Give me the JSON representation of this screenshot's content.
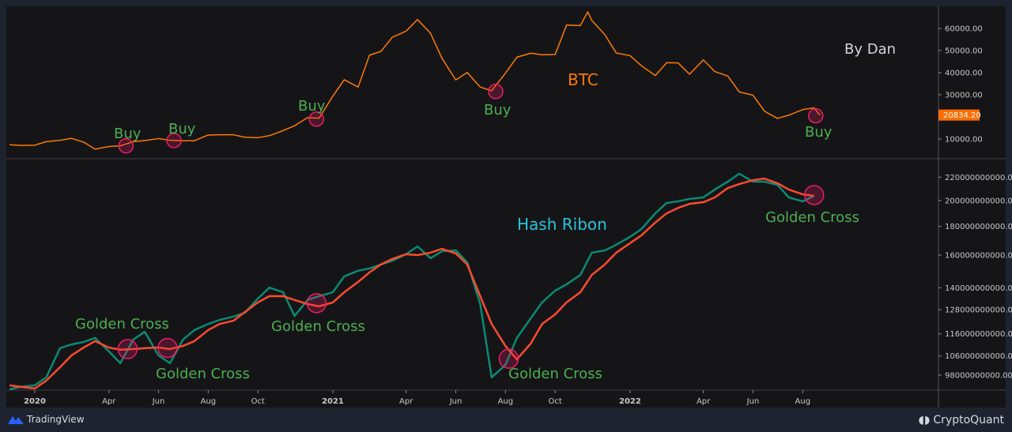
{
  "chart_data": [
    {
      "type": "line",
      "title": "BTC",
      "credit": "By Dan",
      "y_scale": "linear",
      "ylim": [
        0,
        68000
      ],
      "y_ticks": [
        "10000.00",
        "30000.00",
        "40000.00",
        "50000.00",
        "60000.00"
      ],
      "last_value_label": "20834.20",
      "color": "#ff7a00",
      "x": [
        "2019-12-01",
        "2019-12-15",
        "2020-01-01",
        "2020-01-15",
        "2020-02-01",
        "2020-02-15",
        "2020-03-01",
        "2020-03-15",
        "2020-04-01",
        "2020-04-15",
        "2020-05-01",
        "2020-05-15",
        "2020-06-01",
        "2020-06-15",
        "2020-07-01",
        "2020-07-15",
        "2020-08-01",
        "2020-08-15",
        "2020-09-01",
        "2020-09-15",
        "2020-10-01",
        "2020-10-15",
        "2020-11-01",
        "2020-11-15",
        "2020-12-01",
        "2020-12-15",
        "2021-01-01",
        "2021-01-15",
        "2021-02-01",
        "2021-02-15",
        "2021-03-01",
        "2021-03-15",
        "2021-04-01",
        "2021-04-15",
        "2021-05-01",
        "2021-05-15",
        "2021-06-01",
        "2021-06-15",
        "2021-07-01",
        "2021-07-15",
        "2021-08-01",
        "2021-08-15",
        "2021-09-01",
        "2021-09-15",
        "2021-10-01",
        "2021-10-15",
        "2021-11-01",
        "2021-11-10",
        "2021-11-15",
        "2021-12-01",
        "2021-12-15",
        "2022-01-01",
        "2022-01-15",
        "2022-02-01",
        "2022-02-15",
        "2022-03-01",
        "2022-03-15",
        "2022-04-01",
        "2022-04-15",
        "2022-05-01",
        "2022-05-15",
        "2022-06-01",
        "2022-06-15",
        "2022-07-01",
        "2022-07-15",
        "2022-08-01",
        "2022-08-15",
        "2022-08-22"
      ],
      "values": [
        7400,
        7100,
        7200,
        8800,
        9400,
        10300,
        8600,
        5400,
        6600,
        6900,
        8800,
        9300,
        10200,
        9400,
        9200,
        9200,
        11800,
        11900,
        11900,
        10800,
        10600,
        11500,
        13800,
        16000,
        19700,
        19400,
        29400,
        36800,
        33500,
        47900,
        49600,
        56000,
        58800,
        64000,
        57800,
        46500,
        36700,
        40100,
        33500,
        31800,
        39800,
        47000,
        48800,
        48100,
        48200,
        61500,
        61300,
        67500,
        63600,
        57200,
        48900,
        47700,
        43100,
        38700,
        44500,
        44400,
        39300,
        45800,
        40500,
        38500,
        31300,
        29800,
        22600,
        19300,
        20800,
        23300,
        24100,
        20834.2
      ],
      "annotations": [
        {
          "label": "Buy",
          "date": "2020-04-22",
          "value": 6900
        },
        {
          "label": "Buy",
          "date": "2020-06-20",
          "value": 9300
        },
        {
          "label": "Buy",
          "date": "2020-12-12",
          "value": 19000
        },
        {
          "label": "Buy",
          "date": "2021-07-20",
          "value": 31500
        },
        {
          "label": "Buy",
          "date": "2022-08-17",
          "value": 20500
        }
      ]
    },
    {
      "type": "line",
      "title": "Hash Ribon",
      "y_scale": "log",
      "y_ticks": [
        "98000000000.00",
        "106000000000.00",
        "116000000000.00",
        "128000000000.00",
        "140000000000.00",
        "160000000000.00",
        "180000000000.00",
        "200000000000.00",
        "220000000000.00"
      ],
      "x": [
        "2019-12-01",
        "2019-12-15",
        "2020-01-01",
        "2020-01-15",
        "2020-02-01",
        "2020-02-15",
        "2020-03-01",
        "2020-03-15",
        "2020-04-01",
        "2020-04-15",
        "2020-05-01",
        "2020-05-15",
        "2020-06-01",
        "2020-06-15",
        "2020-07-01",
        "2020-07-15",
        "2020-08-01",
        "2020-08-15",
        "2020-09-01",
        "2020-09-15",
        "2020-10-01",
        "2020-10-15",
        "2020-11-01",
        "2020-11-15",
        "2020-12-01",
        "2020-12-15",
        "2021-01-01",
        "2021-01-15",
        "2021-02-01",
        "2021-02-15",
        "2021-03-01",
        "2021-03-15",
        "2021-04-01",
        "2021-04-15",
        "2021-05-01",
        "2021-05-15",
        "2021-06-01",
        "2021-06-15",
        "2021-07-01",
        "2021-07-15",
        "2021-08-01",
        "2021-08-15",
        "2021-09-01",
        "2021-09-15",
        "2021-10-01",
        "2021-10-15",
        "2021-11-01",
        "2021-11-15",
        "2021-12-01",
        "2021-12-15",
        "2022-01-01",
        "2022-01-15",
        "2022-02-01",
        "2022-02-15",
        "2022-03-01",
        "2022-03-15",
        "2022-04-01",
        "2022-04-15",
        "2022-05-01",
        "2022-05-15",
        "2022-06-01",
        "2022-06-15",
        "2022-07-01",
        "2022-07-15",
        "2022-08-01",
        "2022-08-15"
      ],
      "series": [
        {
          "color": "#0b8a72",
          "values": [
            92500000000,
            93400000000,
            94000000000,
            97100000000,
            109400000000,
            111100000000,
            112200000000,
            114100000000,
            108000000000,
            102900000000,
            113300000000,
            117000000000,
            106200000000,
            102900000000,
            113300000000,
            117800000000,
            120800000000,
            122800000000,
            124500000000,
            126400000000,
            134000000000,
            140100000000,
            137500000000,
            124800000000,
            133200000000,
            135300000000,
            137500000000,
            146700000000,
            150100000000,
            151500000000,
            154000000000,
            156400000000,
            160600000000,
            165800000000,
            158000000000,
            162600000000,
            163100000000,
            155400000000,
            131000000000,
            97100000000,
            102200000000,
            114100000000,
            123600000000,
            131900000000,
            138400000000,
            142000000000,
            147600000000,
            161600000000,
            163100000000,
            166900000000,
            172400000000,
            178000000000,
            189800000000,
            198000000000,
            199300000000,
            201300000000,
            202500000000,
            209100000000,
            216000000000,
            223100000000,
            216000000000,
            216000000000,
            213200000000,
            202500000000,
            199300000000,
            203800000000
          ]
        },
        {
          "color": "#ff4a2e",
          "values": [
            94000000000,
            93400000000,
            92800000000,
            95800000000,
            101200000000,
            106200000000,
            109700000000,
            112600000000,
            109700000000,
            108700000000,
            109000000000,
            109400000000,
            109700000000,
            109000000000,
            110400000000,
            112600000000,
            117800000000,
            120800000000,
            122400000000,
            126800000000,
            131900000000,
            135300000000,
            135300000000,
            133200000000,
            131000000000,
            129800000000,
            131900000000,
            137500000000,
            143400000000,
            149100000000,
            154000000000,
            157500000000,
            160600000000,
            160000000000,
            161600000000,
            164200000000,
            161100000000,
            154000000000,
            135300000000,
            120800000000,
            110400000000,
            104500000000,
            111500000000,
            120800000000,
            125600000000,
            131900000000,
            137500000000,
            147600000000,
            154000000000,
            161600000000,
            168000000000,
            173500000000,
            182800000000,
            189800000000,
            194000000000,
            197300000000,
            198600000000,
            202500000000,
            210400000000,
            213900000000,
            217300000000,
            218700000000,
            214600000000,
            209100000000,
            205100000000,
            203800000000
          ]
        }
      ],
      "annotations": [
        {
          "label": "Golden Cross",
          "date": "2020-04-24",
          "value": 109000000000
        },
        {
          "label": "Golden Cross",
          "date": "2020-06-12",
          "value": 109500000000
        },
        {
          "label": "Golden Cross",
          "date": "2020-12-12",
          "value": 131500000000
        },
        {
          "label": "Golden Cross",
          "date": "2021-08-05",
          "value": 104800000000
        },
        {
          "label": "Golden Cross",
          "date": "2022-08-15",
          "value": 204500000000
        }
      ]
    }
  ],
  "x_axis": {
    "ticks": [
      {
        "label": "2020",
        "date": "2020-01-01",
        "year": true
      },
      {
        "label": "Apr",
        "date": "2020-04-01"
      },
      {
        "label": "Jun",
        "date": "2020-06-01"
      },
      {
        "label": "Aug",
        "date": "2020-08-01"
      },
      {
        "label": "Oct",
        "date": "2020-10-01"
      },
      {
        "label": "2021",
        "date": "2021-01-01",
        "year": true
      },
      {
        "label": "Apr",
        "date": "2021-04-01"
      },
      {
        "label": "Jun",
        "date": "2021-06-01"
      },
      {
        "label": "Aug",
        "date": "2021-08-01"
      },
      {
        "label": "Oct",
        "date": "2021-10-01"
      },
      {
        "label": "2022",
        "date": "2022-01-01",
        "year": true
      },
      {
        "label": "Apr",
        "date": "2022-04-01"
      },
      {
        "label": "Jun",
        "date": "2022-06-01"
      },
      {
        "label": "Aug",
        "date": "2022-08-01"
      }
    ]
  },
  "colors": {
    "annotation_text": "#4caf50",
    "marker": "#e91e63",
    "hash_title": "#26c6da",
    "btc": "#ff7a00",
    "background": "#151518",
    "frame": "#1f2330"
  },
  "footer": {
    "left": "TradingView",
    "right": "CryptoQuant"
  }
}
